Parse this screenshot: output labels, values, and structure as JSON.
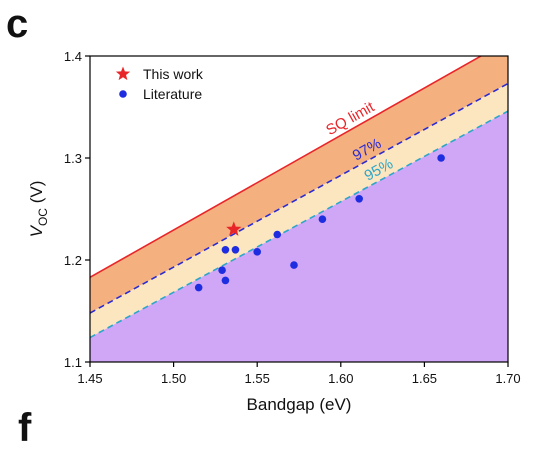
{
  "panel_label": "c",
  "next_panel_label": "f",
  "chart_data": {
    "type": "scatter",
    "xlabel": "Bandgap (eV)",
    "ylabel_main": "V",
    "ylabel_sub": "OC",
    "ylabel_unit": " (V)",
    "xlim": [
      1.45,
      1.7
    ],
    "ylim": [
      1.1,
      1.4
    ],
    "x_ticks": [
      "1.45",
      "1.50",
      "1.55",
      "1.60",
      "1.65",
      "1.70"
    ],
    "y_ticks": [
      "1.1",
      "1.2",
      "1.3",
      "1.4"
    ],
    "legend": {
      "placement": "top-left",
      "items": [
        {
          "label": "This work",
          "marker": "star",
          "color": "#e8262a"
        },
        {
          "label": "Literature",
          "marker": "circle",
          "color": "#1f2de0"
        }
      ]
    },
    "limit_lines": [
      {
        "label": "SQ limit",
        "color": "#e8262a",
        "style": "solid",
        "x": [
          1.45,
          1.7
        ],
        "y": [
          1.183,
          1.415
        ]
      },
      {
        "label": "97%",
        "color": "#2b2bd0",
        "style": "dashed",
        "x": [
          1.45,
          1.7
        ],
        "y": [
          1.148,
          1.373
        ]
      },
      {
        "label": "95%",
        "color": "#2ea6c8",
        "style": "dashed",
        "x": [
          1.45,
          1.7
        ],
        "y": [
          1.124,
          1.346
        ]
      }
    ],
    "fill_colors": {
      "sq_to_97": "#f4b07f",
      "97_to_95": "#fbe6bf",
      "below_95": "#cfa7f6"
    },
    "series": [
      {
        "name": "This work",
        "marker": "star",
        "color": "#e8262a",
        "points": [
          {
            "x": 1.536,
            "y": 1.23
          }
        ]
      },
      {
        "name": "Literature",
        "marker": "circle",
        "color": "#1f2de0",
        "points": [
          {
            "x": 1.515,
            "y": 1.173
          },
          {
            "x": 1.529,
            "y": 1.19
          },
          {
            "x": 1.531,
            "y": 1.18
          },
          {
            "x": 1.531,
            "y": 1.21
          },
          {
            "x": 1.537,
            "y": 1.21
          },
          {
            "x": 1.55,
            "y": 1.208
          },
          {
            "x": 1.562,
            "y": 1.225
          },
          {
            "x": 1.572,
            "y": 1.195
          },
          {
            "x": 1.589,
            "y": 1.24
          },
          {
            "x": 1.611,
            "y": 1.26
          },
          {
            "x": 1.66,
            "y": 1.3
          }
        ]
      }
    ]
  }
}
